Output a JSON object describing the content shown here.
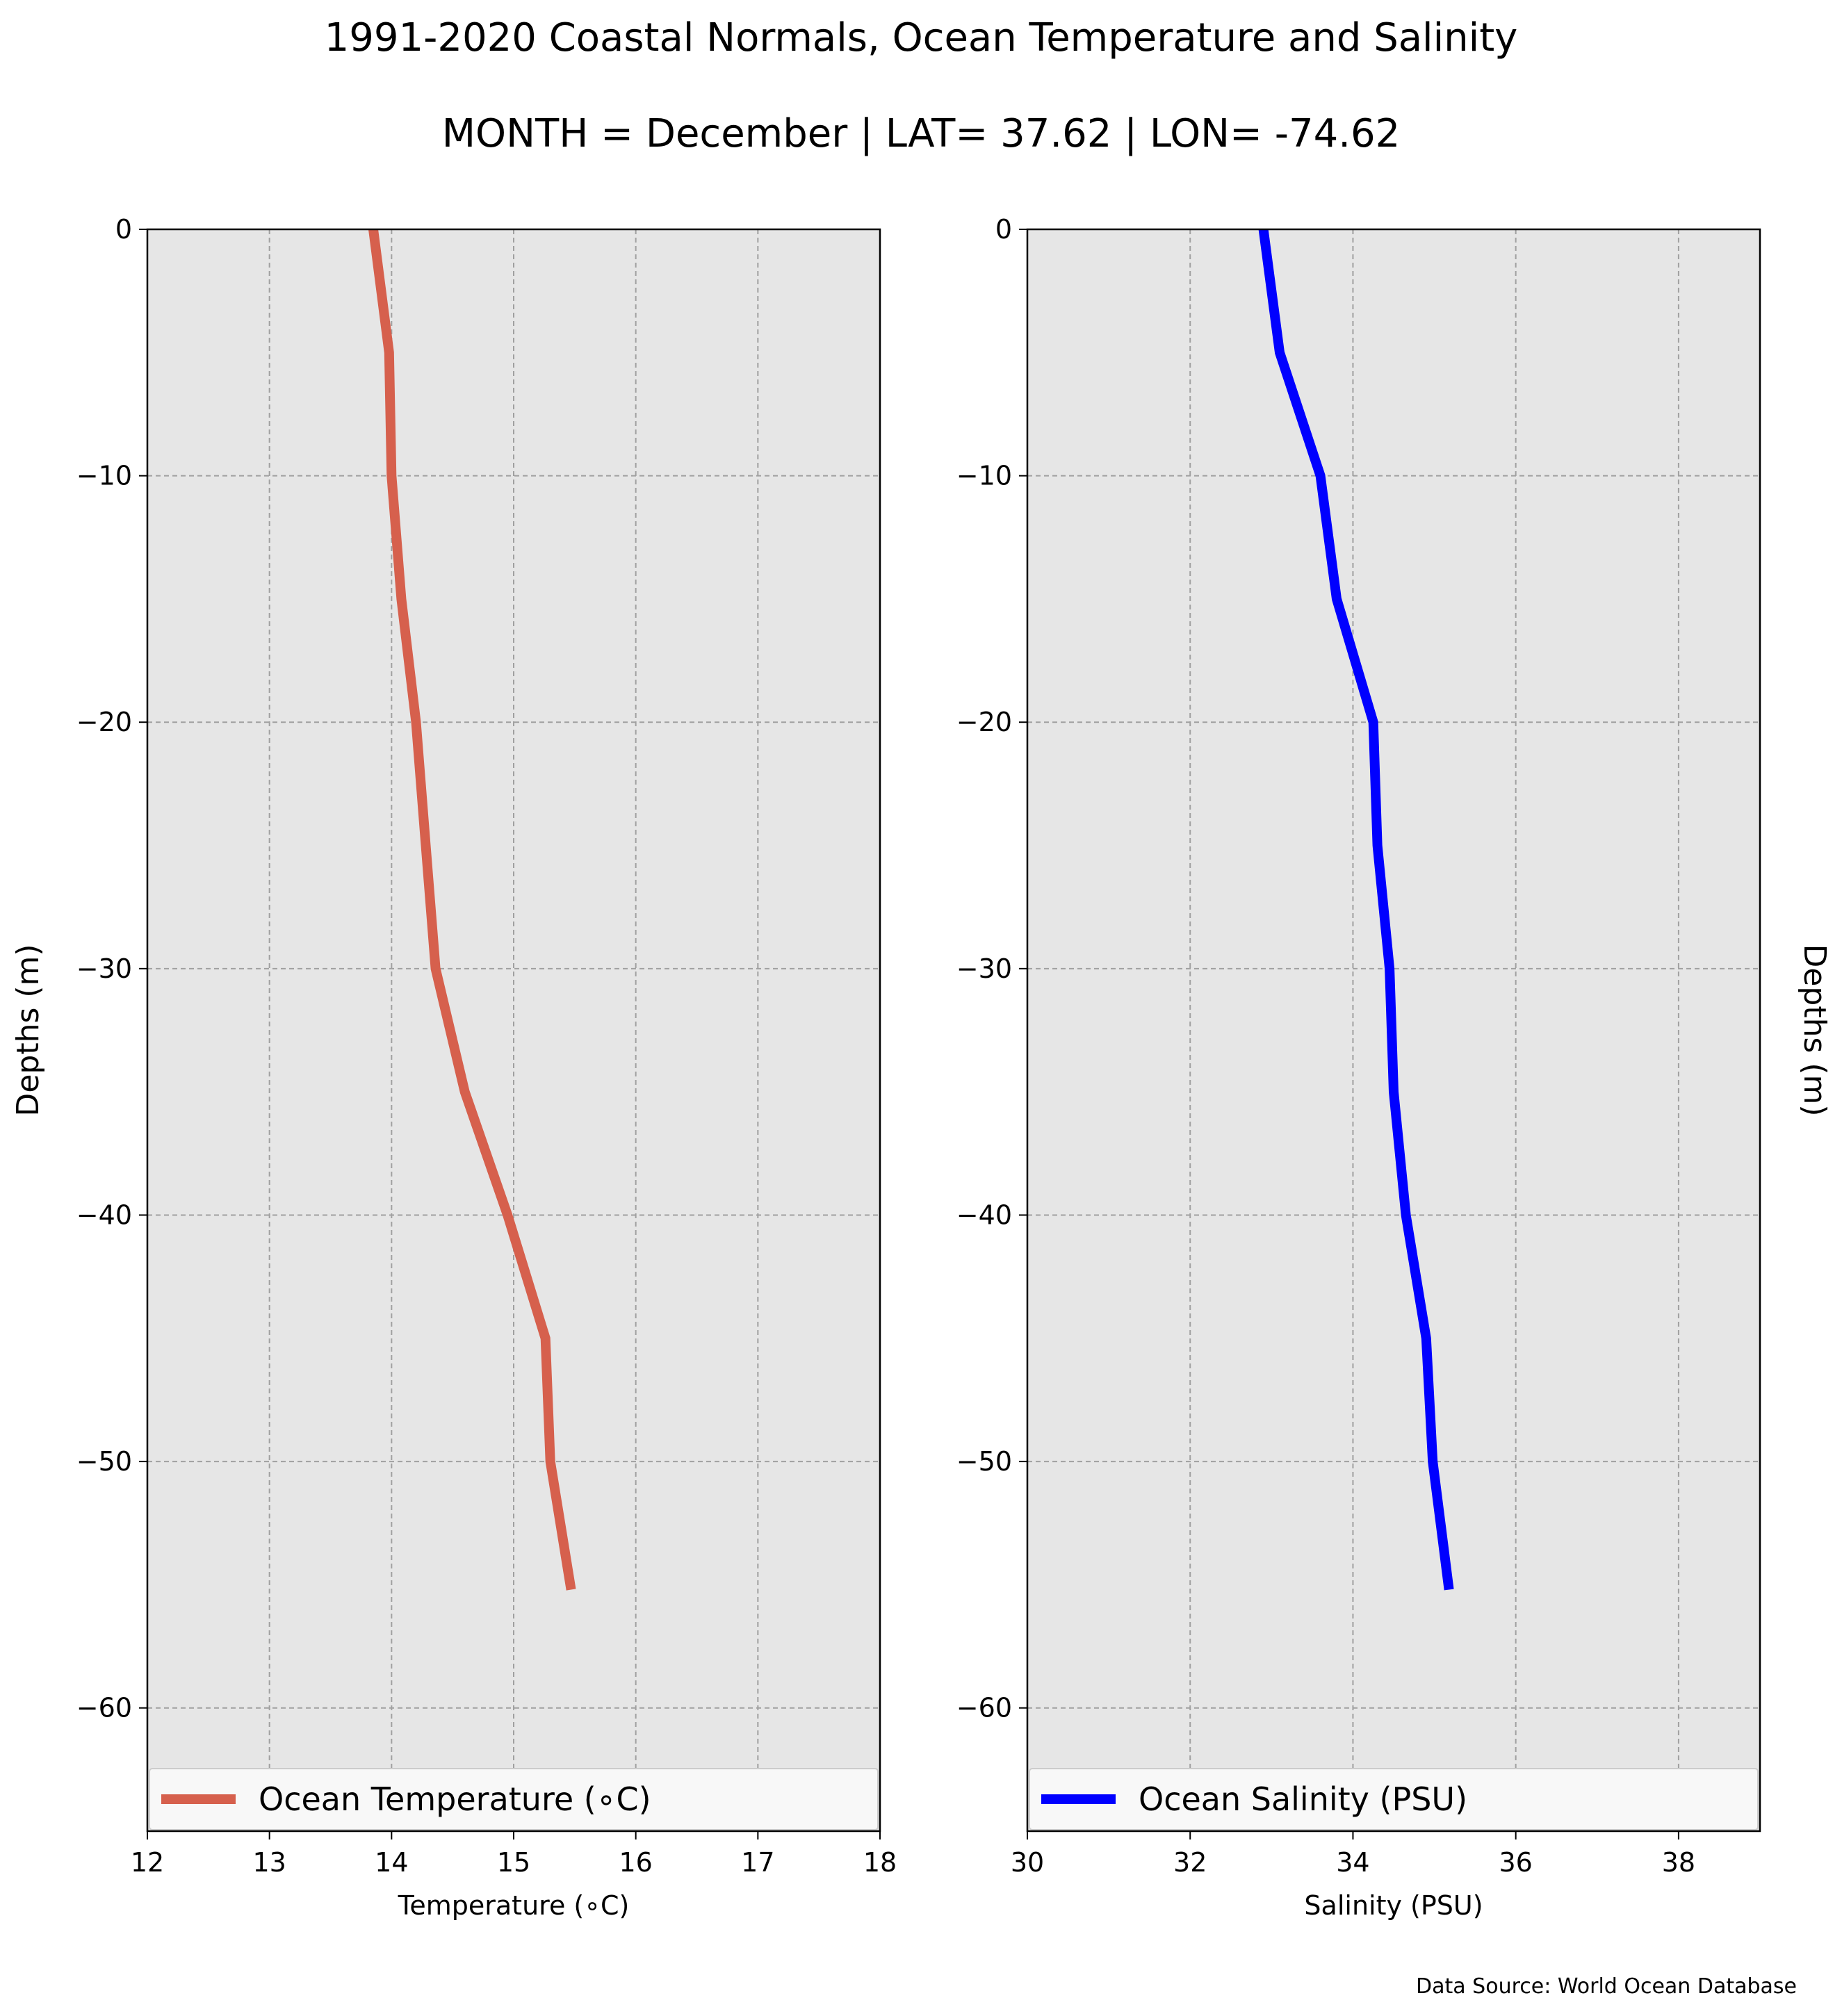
{
  "title": "1991-2020 Coastal Normals, Ocean Temperature and Salinity",
  "subtitle": "MONTH = December | LAT= 37.62 | LON= -74.62",
  "source": "Data Source: World Ocean Database",
  "chart_data": [
    {
      "type": "line",
      "xlabel": "Temperature ($^\\circ$C)",
      "xlabel_display": "Temperature (∘C)",
      "ylabel": "Depths (m)",
      "xlim": [
        12,
        18
      ],
      "ylim": [
        -65,
        0
      ],
      "xticks": [
        12,
        13,
        14,
        15,
        16,
        17,
        18
      ],
      "yticks": [
        0,
        -10,
        -20,
        -30,
        -40,
        -50,
        -60
      ],
      "ytick_labels": [
        "0",
        "−10",
        "−20",
        "−30",
        "−40",
        "−50",
        "−60"
      ],
      "grid": true,
      "legend_placement": "bottom",
      "series": [
        {
          "name": "Ocean Temperature (∘C)",
          "color": "#d6604d",
          "x": [
            13.85,
            13.98,
            14.0,
            14.08,
            14.2,
            14.28,
            14.36,
            14.6,
            14.95,
            15.26,
            15.3,
            15.47
          ],
          "y": [
            0,
            -5,
            -10,
            -15,
            -20,
            -25,
            -30,
            -35,
            -40,
            -45,
            -50,
            -55.2
          ]
        }
      ]
    },
    {
      "type": "line",
      "xlabel": "Salinity (PSU)",
      "ylabel": "Depths (m)",
      "xlim": [
        30,
        39
      ],
      "ylim": [
        -65,
        0
      ],
      "xticks": [
        30,
        32,
        34,
        36,
        38
      ],
      "yticks": [
        0,
        -10,
        -20,
        -30,
        -40,
        -50,
        -60
      ],
      "ytick_labels": [
        "0",
        "−10",
        "−20",
        "−30",
        "−40",
        "−50",
        "−60"
      ],
      "grid": true,
      "legend_placement": "bottom",
      "series": [
        {
          "name": "Ocean Salinity (PSU)",
          "color": "#0000ff",
          "x": [
            32.9,
            33.1,
            33.6,
            33.8,
            34.25,
            34.3,
            34.45,
            34.5,
            34.65,
            34.9,
            34.98,
            35.18
          ],
          "y": [
            0,
            -5,
            -10,
            -15,
            -20,
            -25,
            -30,
            -35,
            -40,
            -45,
            -50,
            -55.2
          ]
        }
      ]
    }
  ]
}
